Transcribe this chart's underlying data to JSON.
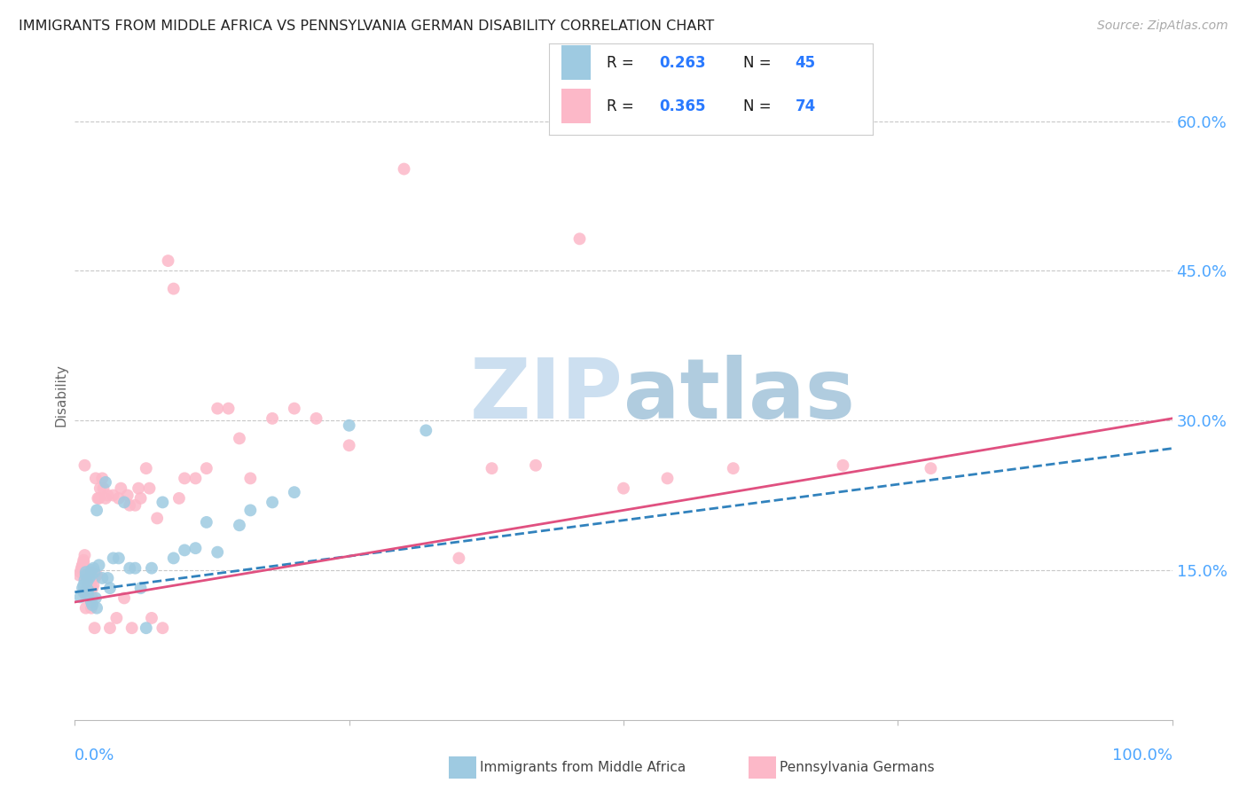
{
  "title": "IMMIGRANTS FROM MIDDLE AFRICA VS PENNSYLVANIA GERMAN DISABILITY CORRELATION CHART",
  "source": "Source: ZipAtlas.com",
  "ylabel": "Disability",
  "xlim": [
    0.0,
    1.0
  ],
  "ylim": [
    0.0,
    0.65
  ],
  "yticks": [
    0.15,
    0.3,
    0.45,
    0.6
  ],
  "ytick_labels": [
    "15.0%",
    "30.0%",
    "45.0%",
    "60.0%"
  ],
  "axis_label_color": "#4da6ff",
  "title_color": "#222222",
  "grid_color": "#c8c8c8",
  "watermark_zip_color": "#c8dff0",
  "watermark_atlas_color": "#a8c8e8",
  "blue_color": "#9ecae1",
  "pink_color": "#fcb8c8",
  "blue_line_color": "#3182bd",
  "pink_line_color": "#e05080",
  "legend_r_text_color": "#1a1a1a",
  "legend_val_color": "#2979ff",
  "legend_n_bold_color": "#2979ff",
  "blue_scatter_x": [
    0.005,
    0.007,
    0.008,
    0.008,
    0.009,
    0.01,
    0.01,
    0.011,
    0.012,
    0.012,
    0.013,
    0.015,
    0.015,
    0.015,
    0.016,
    0.017,
    0.018,
    0.019,
    0.02,
    0.02,
    0.022,
    0.025,
    0.028,
    0.03,
    0.032,
    0.035,
    0.04,
    0.045,
    0.05,
    0.055,
    0.06,
    0.065,
    0.07,
    0.08,
    0.09,
    0.1,
    0.11,
    0.12,
    0.13,
    0.15,
    0.16,
    0.18,
    0.2,
    0.25,
    0.32
  ],
  "blue_scatter_y": [
    0.123,
    0.132,
    0.128,
    0.135,
    0.14,
    0.145,
    0.148,
    0.138,
    0.13,
    0.125,
    0.142,
    0.15,
    0.145,
    0.118,
    0.115,
    0.152,
    0.148,
    0.122,
    0.21,
    0.112,
    0.155,
    0.142,
    0.238,
    0.142,
    0.132,
    0.162,
    0.162,
    0.218,
    0.152,
    0.152,
    0.132,
    0.092,
    0.152,
    0.218,
    0.162,
    0.17,
    0.172,
    0.198,
    0.168,
    0.195,
    0.21,
    0.218,
    0.228,
    0.295,
    0.29
  ],
  "pink_scatter_x": [
    0.004,
    0.005,
    0.006,
    0.007,
    0.007,
    0.008,
    0.008,
    0.009,
    0.009,
    0.01,
    0.01,
    0.011,
    0.012,
    0.012,
    0.013,
    0.013,
    0.014,
    0.015,
    0.015,
    0.016,
    0.016,
    0.017,
    0.018,
    0.018,
    0.019,
    0.02,
    0.021,
    0.022,
    0.023,
    0.025,
    0.026,
    0.028,
    0.03,
    0.032,
    0.035,
    0.038,
    0.04,
    0.042,
    0.045,
    0.048,
    0.05,
    0.052,
    0.055,
    0.058,
    0.06,
    0.065,
    0.068,
    0.07,
    0.075,
    0.08,
    0.085,
    0.09,
    0.095,
    0.1,
    0.11,
    0.12,
    0.13,
    0.14,
    0.15,
    0.16,
    0.18,
    0.2,
    0.22,
    0.25,
    0.3,
    0.35,
    0.38,
    0.42,
    0.46,
    0.5,
    0.54,
    0.6,
    0.7,
    0.78
  ],
  "pink_scatter_y": [
    0.145,
    0.148,
    0.152,
    0.155,
    0.155,
    0.158,
    0.16,
    0.165,
    0.255,
    0.112,
    0.125,
    0.132,
    0.135,
    0.142,
    0.142,
    0.145,
    0.142,
    0.148,
    0.112,
    0.122,
    0.132,
    0.135,
    0.142,
    0.092,
    0.242,
    0.145,
    0.222,
    0.222,
    0.232,
    0.242,
    0.232,
    0.222,
    0.225,
    0.092,
    0.225,
    0.102,
    0.222,
    0.232,
    0.122,
    0.225,
    0.215,
    0.092,
    0.215,
    0.232,
    0.222,
    0.252,
    0.232,
    0.102,
    0.202,
    0.092,
    0.46,
    0.432,
    0.222,
    0.242,
    0.242,
    0.252,
    0.312,
    0.312,
    0.282,
    0.242,
    0.302,
    0.312,
    0.302,
    0.275,
    0.552,
    0.162,
    0.252,
    0.255,
    0.482,
    0.232,
    0.242,
    0.252,
    0.255,
    0.252
  ],
  "blue_line_y_start": 0.128,
  "blue_line_y_end": 0.272,
  "pink_line_y_start": 0.118,
  "pink_line_y_end": 0.302
}
